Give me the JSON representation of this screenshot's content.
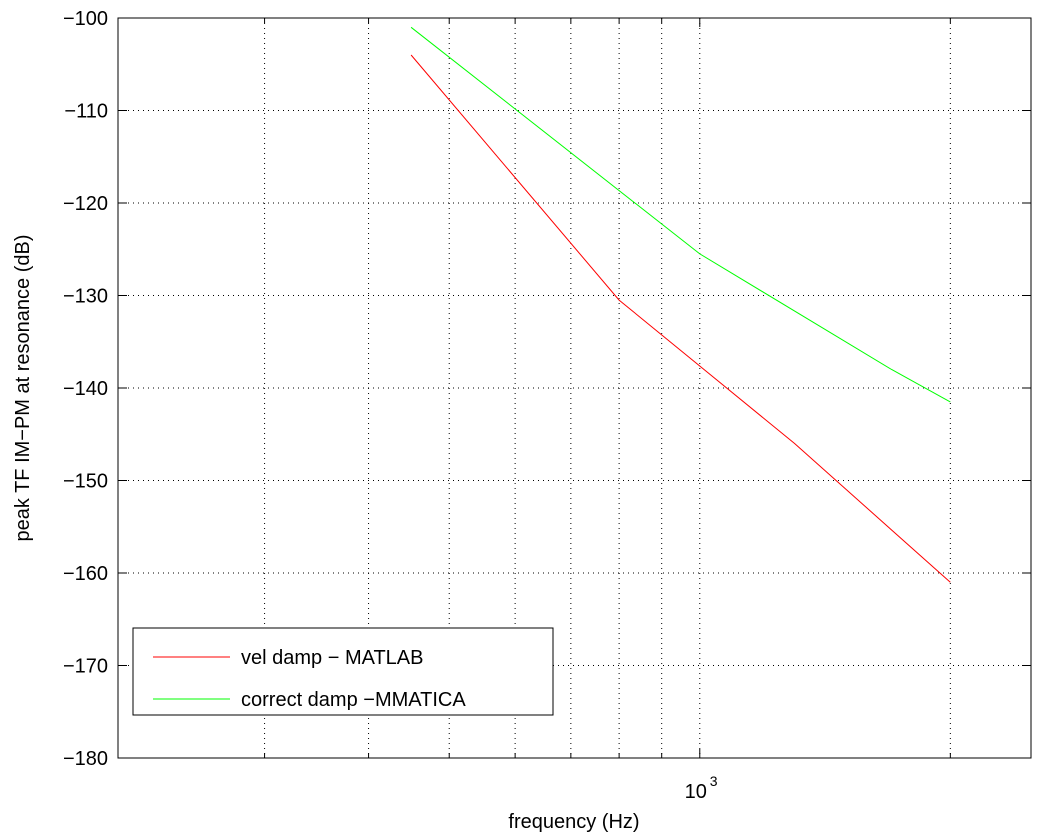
{
  "chart_data": {
    "type": "line",
    "title": "",
    "xlabel": "frequency (Hz)",
    "ylabel": "peak TF IM−PM at resonance (dB)",
    "xscale": "log",
    "xlim": [
      200,
      2500
    ],
    "ylim": [
      -180,
      -100
    ],
    "y_ticks": [
      -100,
      -110,
      -120,
      -130,
      -140,
      -150,
      -160,
      -170,
      -180
    ],
    "y_tick_labels": [
      "−100",
      "−110",
      "−120",
      "−130",
      "−140",
      "−150",
      "−160",
      "−170",
      "−180"
    ],
    "x_ticks_major": [
      1000
    ],
    "x_tick_labels": [
      {
        "base": "10",
        "exp": "3"
      }
    ],
    "x_grid_minor": [
      300,
      400,
      500,
      600,
      700,
      800,
      900,
      2000
    ],
    "grid": true,
    "legend_position": "bottom-left",
    "series": [
      {
        "name": "vel damp − MATLAB",
        "color": "#ff0000",
        "x": [
          450,
          800,
          1300,
          2000
        ],
        "y": [
          -104,
          -130.5,
          -146,
          -161
        ]
      },
      {
        "name": "correct damp −MMATICA",
        "color": "#00ff00",
        "x": [
          450,
          1000,
          1700,
          2000
        ],
        "y": [
          -101,
          -125.5,
          -138,
          -141.5
        ]
      }
    ]
  }
}
